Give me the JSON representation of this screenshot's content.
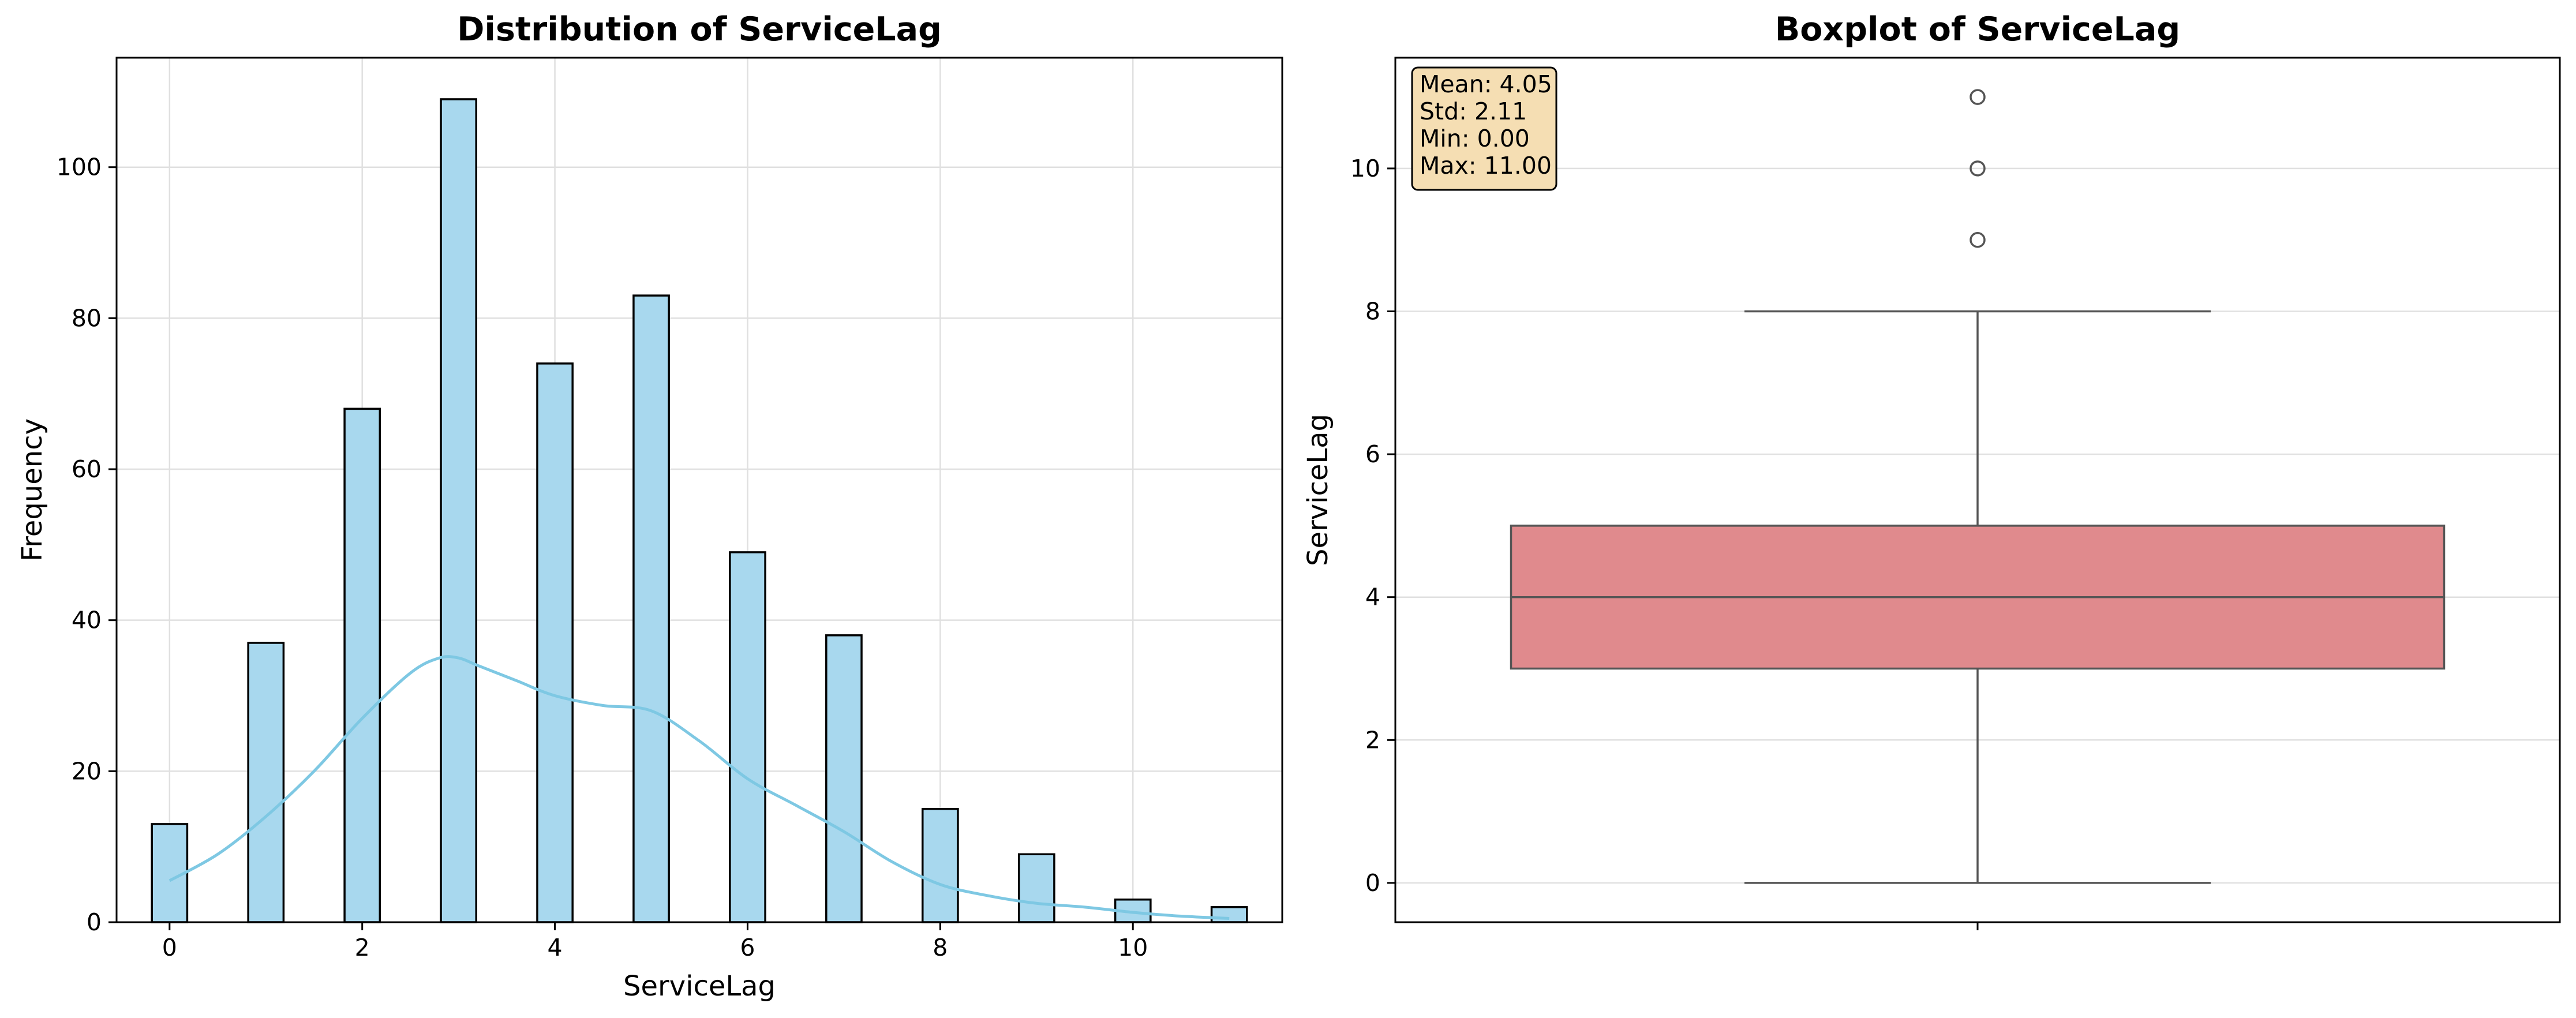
{
  "chart_data": [
    {
      "type": "bar",
      "title": "Distribution of ServiceLag",
      "xlabel": "ServiceLag",
      "ylabel": "Frequency",
      "xlim": [
        -0.55,
        11.55
      ],
      "ylim": [
        0,
        114.5
      ],
      "xticks": [
        0,
        2,
        4,
        6,
        8,
        10
      ],
      "yticks": [
        0,
        20,
        40,
        60,
        80,
        100
      ],
      "grid": true,
      "bin_width": 0.3667,
      "categories": [
        "0",
        "1",
        "2",
        "3",
        "4",
        "5",
        "6",
        "7",
        "8",
        "9",
        "10",
        "11"
      ],
      "x": [
        0,
        1,
        2,
        3,
        4,
        5,
        6,
        7,
        8,
        9,
        10,
        11
      ],
      "values": [
        13,
        37,
        68,
        109,
        74,
        83,
        49,
        38,
        15,
        9,
        3,
        2
      ],
      "bar_color": "#a8d8ee",
      "edge_color": "#000000",
      "kde": {
        "color": "#7ec8e3",
        "x": [
          0,
          0.5,
          1,
          1.5,
          2,
          2.5,
          2.8,
          3,
          3.2,
          3.6,
          4,
          4.5,
          5,
          5.5,
          6,
          6.5,
          7,
          7.5,
          8,
          8.5,
          9,
          9.5,
          10,
          10.5,
          11
        ],
        "y": [
          5.5,
          9,
          14,
          20,
          27,
          33,
          35,
          35,
          34,
          32,
          30,
          28.7,
          28,
          24,
          19,
          15.5,
          12,
          8,
          5,
          3.5,
          2.5,
          2,
          1.3,
          0.8,
          0.5
        ]
      }
    },
    {
      "type": "box",
      "title": "Boxplot of ServiceLag",
      "xlabel": "",
      "ylabel": "ServiceLag",
      "ylim": [
        -0.55,
        11.55
      ],
      "yticks": [
        0,
        2,
        4,
        6,
        8,
        10
      ],
      "grid": true,
      "box": {
        "min": 0,
        "q1": 3,
        "median": 4,
        "q3": 5,
        "max": 8
      },
      "outliers": [
        9,
        10,
        11
      ],
      "box_color": "#e08a8d",
      "line_color": "#555555",
      "stats_box": {
        "position": "top-left",
        "background": "#f5deb3",
        "lines": [
          "Mean: 4.05",
          "Std: 2.11",
          "Min: 0.00",
          "Max: 11.00"
        ]
      }
    }
  ]
}
